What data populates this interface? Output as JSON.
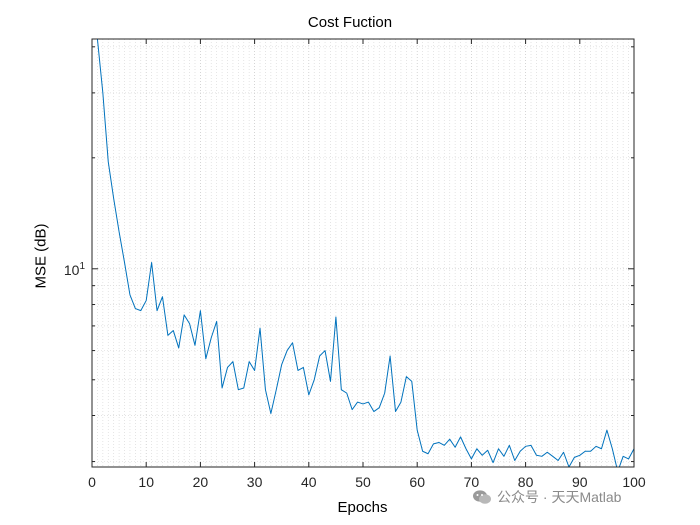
{
  "chart_data": {
    "type": "line",
    "title": "Cost Fuction",
    "xlabel": "Epochs",
    "ylabel": "MSE (dB)",
    "yscale": "log",
    "xlim": [
      0,
      100
    ],
    "ylim": [
      2.9,
      42
    ],
    "grid": "on (dotted, major and minor)",
    "x_ticks": [
      0,
      10,
      20,
      30,
      40,
      50,
      60,
      70,
      80,
      90,
      100
    ],
    "y_tick_label": {
      "base": "10",
      "exponent": "1"
    },
    "series": [
      {
        "color": "#0072bd",
        "x": [
          1,
          2,
          3,
          4,
          5,
          6,
          7,
          8,
          9,
          10,
          11,
          12,
          13,
          14,
          15,
          16,
          17,
          18,
          19,
          20,
          21,
          22,
          23,
          24,
          25,
          26,
          27,
          28,
          29,
          30,
          31,
          32,
          33,
          34,
          35,
          36,
          37,
          38,
          39,
          40,
          41,
          42,
          43,
          44,
          45,
          46,
          47,
          48,
          49,
          50,
          51,
          52,
          53,
          54,
          55,
          56,
          57,
          58,
          59,
          60,
          61,
          62,
          63,
          64,
          65,
          66,
          67,
          68,
          69,
          70,
          71,
          72,
          73,
          74,
          75,
          76,
          77,
          78,
          79,
          80,
          81,
          82,
          83,
          84,
          85,
          86,
          87,
          88,
          89,
          90,
          91,
          92,
          93,
          94,
          95,
          96,
          97,
          98,
          99,
          100
        ],
        "y": [
          42,
          30,
          19.5,
          15.5,
          12.6,
          10.4,
          8.5,
          7.8,
          7.7,
          8.2,
          10.4,
          7.7,
          8.4,
          6.6,
          6.8,
          6.1,
          7.5,
          7.1,
          6.2,
          7.7,
          5.7,
          6.5,
          7.2,
          4.75,
          5.4,
          5.6,
          4.7,
          4.75,
          5.6,
          5.3,
          6.9,
          4.7,
          4.05,
          4.7,
          5.5,
          6.0,
          6.3,
          5.3,
          5.4,
          4.55,
          5.0,
          5.8,
          6.0,
          4.95,
          7.4,
          4.7,
          4.6,
          4.15,
          4.35,
          4.3,
          4.35,
          4.1,
          4.2,
          4.6,
          5.8,
          4.1,
          4.35,
          5.1,
          4.95,
          3.65,
          3.2,
          3.15,
          3.35,
          3.38,
          3.32,
          3.45,
          3.28,
          3.5,
          3.25,
          3.05,
          3.25,
          3.12,
          3.22,
          2.98,
          3.25,
          3.1,
          3.32,
          3.02,
          3.2,
          3.3,
          3.32,
          3.12,
          3.1,
          3.18,
          3.1,
          3.02,
          3.18,
          2.9,
          3.08,
          3.12,
          3.2,
          3.2,
          3.3,
          3.25,
          3.65,
          3.25,
          2.82,
          3.1,
          3.05,
          3.25
        ]
      }
    ]
  },
  "watermark": {
    "text": "公众号 · 天天Matlab",
    "icon": "wechat-icon"
  }
}
